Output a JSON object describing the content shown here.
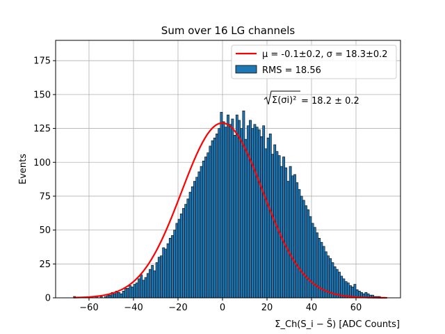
{
  "chart_data": {
    "type": "bar",
    "title": "Sum over 16 LG channels",
    "xlabel": "Σ_Ch(S_i − S̄) [ADC Counts]",
    "ylabel": "Events",
    "xlim": [
      -75,
      80
    ],
    "ylim": [
      0,
      190
    ],
    "xticks": [
      -60,
      -40,
      -20,
      0,
      20,
      40,
      60
    ],
    "xtick_labels": [
      "−60",
      "−40",
      "−20",
      "0",
      "20",
      "40",
      "60"
    ],
    "yticks": [
      0,
      25,
      50,
      75,
      100,
      125,
      150,
      175
    ],
    "ytick_labels": [
      "0",
      "25",
      "50",
      "75",
      "100",
      "125",
      "150",
      "175"
    ],
    "grid": true,
    "legend_position": "top-right",
    "bar_color": "#1f77b4",
    "fit_color": "#ff0000",
    "histogram": {
      "bin_start": -67,
      "bin_width": 1,
      "counts": [
        1,
        0,
        0,
        0,
        0,
        0,
        0,
        0,
        0,
        0,
        1,
        0,
        1,
        0,
        1,
        2,
        2,
        4,
        3,
        5,
        4,
        3,
        5,
        7,
        7,
        9,
        8,
        10,
        11,
        14,
        17,
        13,
        15,
        18,
        21,
        24,
        20,
        26,
        30,
        31,
        37,
        36,
        40,
        44,
        46,
        50,
        55,
        58,
        62,
        66,
        69,
        73,
        78,
        82,
        86,
        89,
        93,
        97,
        101,
        104,
        107,
        112,
        116,
        118,
        121,
        125,
        137,
        130,
        126,
        135,
        128,
        132,
        120,
        135,
        131,
        125,
        138,
        117,
        127,
        131,
        125,
        128,
        126,
        124,
        119,
        127,
        110,
        118,
        121,
        106,
        113,
        108,
        105,
        97,
        104,
        96,
        86,
        97,
        90,
        91,
        85,
        80,
        75,
        72,
        68,
        65,
        60,
        55,
        52,
        48,
        44,
        41,
        38,
        34,
        31,
        29,
        26,
        23,
        21,
        19,
        16,
        14,
        12,
        11,
        9,
        8,
        10,
        6,
        5,
        4,
        3,
        4,
        3,
        2,
        2,
        1,
        1,
        1,
        0,
        0,
        0
      ]
    },
    "fit": {
      "mu": -0.1,
      "sigma": 18.3,
      "amplitude": 129,
      "label": "μ = -0.1±0.2, σ = 18.3±0.2"
    },
    "legend": [
      {
        "name": "μ = -0.1±0.2, σ = 18.3±0.2",
        "kind": "line"
      },
      {
        "name": "RMS = 18.56",
        "kind": "patch"
      }
    ],
    "annotation": {
      "text": "= 18.2 ± 0.2",
      "formula": "√Σ(σi)²",
      "x": 20,
      "y": 143
    }
  }
}
